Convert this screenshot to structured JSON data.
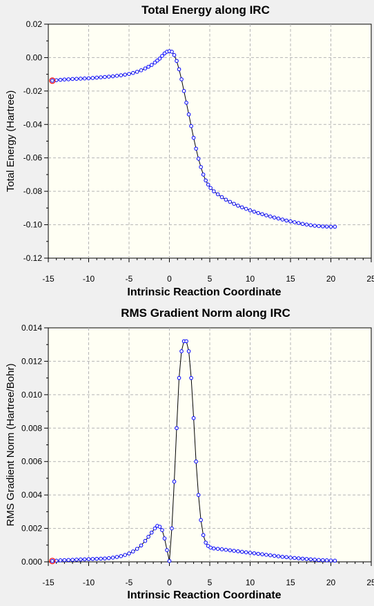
{
  "chart_data": [
    {
      "type": "line",
      "title": "Total Energy along IRC",
      "xlabel": "Intrinsic Reaction Coordinate",
      "ylabel": "Total Energy (Hartree)",
      "xlim": [
        -15,
        25
      ],
      "ylim": [
        -0.12,
        0.02
      ],
      "xticks": [
        -15,
        -10,
        -5,
        0,
        5,
        10,
        15,
        20,
        25
      ],
      "yticks": [
        -0.12,
        -0.1,
        -0.08,
        -0.06,
        -0.04,
        -0.02,
        0.0,
        0.02
      ],
      "xtick_labels": [
        "-15",
        "-10",
        "-5",
        "0",
        "5",
        "10",
        "15",
        "20",
        "25"
      ],
      "ytick_labels": [
        "-0.12",
        "-0.10",
        "-0.08",
        "-0.06",
        "-0.04",
        "-0.02",
        "0.00",
        "0.02"
      ],
      "grid": true,
      "markers": "open circles",
      "highlighted_point": "first point (red ring)",
      "colors": {
        "marker": "#0000ff",
        "line": "#000000",
        "highlight": "#ff0000",
        "plot_bg": "#fffff4"
      },
      "x": [
        -14.5,
        -14.0,
        -13.5,
        -13.0,
        -12.5,
        -12.0,
        -11.5,
        -11.0,
        -10.5,
        -10.0,
        -9.5,
        -9.0,
        -8.5,
        -8.0,
        -7.5,
        -7.0,
        -6.5,
        -6.0,
        -5.5,
        -5.0,
        -4.5,
        -4.0,
        -3.5,
        -3.0,
        -2.6,
        -2.2,
        -1.8,
        -1.5,
        -1.2,
        -0.9,
        -0.6,
        -0.3,
        0.0,
        0.3,
        0.6,
        0.9,
        1.2,
        1.5,
        1.8,
        2.1,
        2.4,
        2.7,
        3.0,
        3.3,
        3.6,
        3.9,
        4.2,
        4.5,
        4.8,
        5.1,
        5.5,
        6.0,
        6.5,
        7.0,
        7.5,
        8.0,
        8.5,
        9.0,
        9.5,
        10.0,
        10.5,
        11.0,
        11.5,
        12.0,
        12.5,
        13.0,
        13.5,
        14.0,
        14.5,
        15.0,
        15.5,
        16.0,
        16.5,
        17.0,
        17.5,
        18.0,
        18.5,
        19.0,
        19.5,
        20.0,
        20.5
      ],
      "values": [
        -0.0138,
        -0.0135,
        -0.0133,
        -0.0131,
        -0.013,
        -0.0128,
        -0.0127,
        -0.0126,
        -0.0125,
        -0.0124,
        -0.0122,
        -0.012,
        -0.0118,
        -0.0116,
        -0.0114,
        -0.0112,
        -0.0109,
        -0.0106,
        -0.0102,
        -0.0098,
        -0.0092,
        -0.0085,
        -0.0076,
        -0.0065,
        -0.0055,
        -0.0044,
        -0.003,
        -0.0018,
        -0.0006,
        0.001,
        0.0025,
        0.0035,
        0.0038,
        0.0035,
        0.0015,
        -0.002,
        -0.007,
        -0.013,
        -0.02,
        -0.027,
        -0.034,
        -0.041,
        -0.048,
        -0.0545,
        -0.0605,
        -0.0655,
        -0.07,
        -0.0735,
        -0.076,
        -0.078,
        -0.08,
        -0.0818,
        -0.0835,
        -0.085,
        -0.0863,
        -0.0875,
        -0.0886,
        -0.0896,
        -0.0905,
        -0.0914,
        -0.0922,
        -0.093,
        -0.0937,
        -0.0944,
        -0.0951,
        -0.0957,
        -0.0963,
        -0.0969,
        -0.0975,
        -0.098,
        -0.0985,
        -0.099,
        -0.0995,
        -0.0999,
        -0.1003,
        -0.1006,
        -0.1008,
        -0.101,
        -0.1011,
        -0.1012,
        -0.1012
      ]
    },
    {
      "type": "line",
      "title": "RMS Gradient Norm along IRC",
      "xlabel": "Intrinsic Reaction Coordinate",
      "ylabel": "RMS Gradient Norm (Hartree/Bohr)",
      "xlim": [
        -15,
        25
      ],
      "ylim": [
        0.0,
        0.014
      ],
      "xticks": [
        -15,
        -10,
        -5,
        0,
        5,
        10,
        15,
        20,
        25
      ],
      "yticks": [
        0.0,
        0.002,
        0.004,
        0.006,
        0.008,
        0.01,
        0.012,
        0.014
      ],
      "xtick_labels": [
        "-15",
        "-10",
        "-5",
        "0",
        "5",
        "10",
        "15",
        "20",
        "25"
      ],
      "ytick_labels": [
        "0.000",
        "0.002",
        "0.004",
        "0.006",
        "0.008",
        "0.010",
        "0.012",
        "0.014"
      ],
      "grid": true,
      "markers": "open circles",
      "highlighted_point": "first point (red ring)",
      "colors": {
        "marker": "#0000ff",
        "line": "#000000",
        "highlight": "#ff0000",
        "plot_bg": "#fffff4"
      },
      "x": [
        -14.5,
        -14.0,
        -13.5,
        -13.0,
        -12.5,
        -12.0,
        -11.5,
        -11.0,
        -10.5,
        -10.0,
        -9.5,
        -9.0,
        -8.5,
        -8.0,
        -7.5,
        -7.0,
        -6.5,
        -6.0,
        -5.5,
        -5.0,
        -4.5,
        -4.0,
        -3.5,
        -3.0,
        -2.6,
        -2.2,
        -1.8,
        -1.5,
        -1.2,
        -0.9,
        -0.6,
        -0.3,
        0.0,
        0.3,
        0.6,
        0.9,
        1.2,
        1.5,
        1.8,
        2.1,
        2.4,
        2.7,
        3.0,
        3.3,
        3.6,
        3.9,
        4.2,
        4.5,
        4.8,
        5.1,
        5.5,
        6.0,
        6.5,
        7.0,
        7.5,
        8.0,
        8.5,
        9.0,
        9.5,
        10.0,
        10.5,
        11.0,
        11.5,
        12.0,
        12.5,
        13.0,
        13.5,
        14.0,
        14.5,
        15.0,
        15.5,
        16.0,
        16.5,
        17.0,
        17.5,
        18.0,
        18.5,
        19.0,
        19.5,
        20.0,
        20.5
      ],
      "values": [
        5e-05,
        7e-05,
        9e-05,
        0.0001,
        0.00011,
        0.00012,
        0.00013,
        0.00014,
        0.00015,
        0.00016,
        0.00017,
        0.00018,
        0.00019,
        0.0002,
        0.00022,
        0.00025,
        0.00029,
        0.00034,
        0.00041,
        0.0005,
        0.00062,
        0.00078,
        0.00098,
        0.00125,
        0.0015,
        0.00175,
        0.002,
        0.00215,
        0.0021,
        0.0019,
        0.0014,
        0.0007,
        5e-05,
        0.002,
        0.0048,
        0.008,
        0.011,
        0.0126,
        0.0132,
        0.0132,
        0.0126,
        0.011,
        0.0086,
        0.006,
        0.004,
        0.0025,
        0.0016,
        0.00115,
        0.00095,
        0.00085,
        0.0008,
        0.00078,
        0.00075,
        0.00072,
        0.00069,
        0.00066,
        0.00063,
        0.0006,
        0.00057,
        0.00054,
        0.00051,
        0.00048,
        0.00045,
        0.00042,
        0.00039,
        0.00036,
        0.00033,
        0.0003,
        0.00028,
        0.00025,
        0.00023,
        0.00021,
        0.00019,
        0.00017,
        0.00015,
        0.00013,
        0.00011,
        0.0001,
        9e-05,
        8e-05,
        7e-05
      ]
    }
  ]
}
